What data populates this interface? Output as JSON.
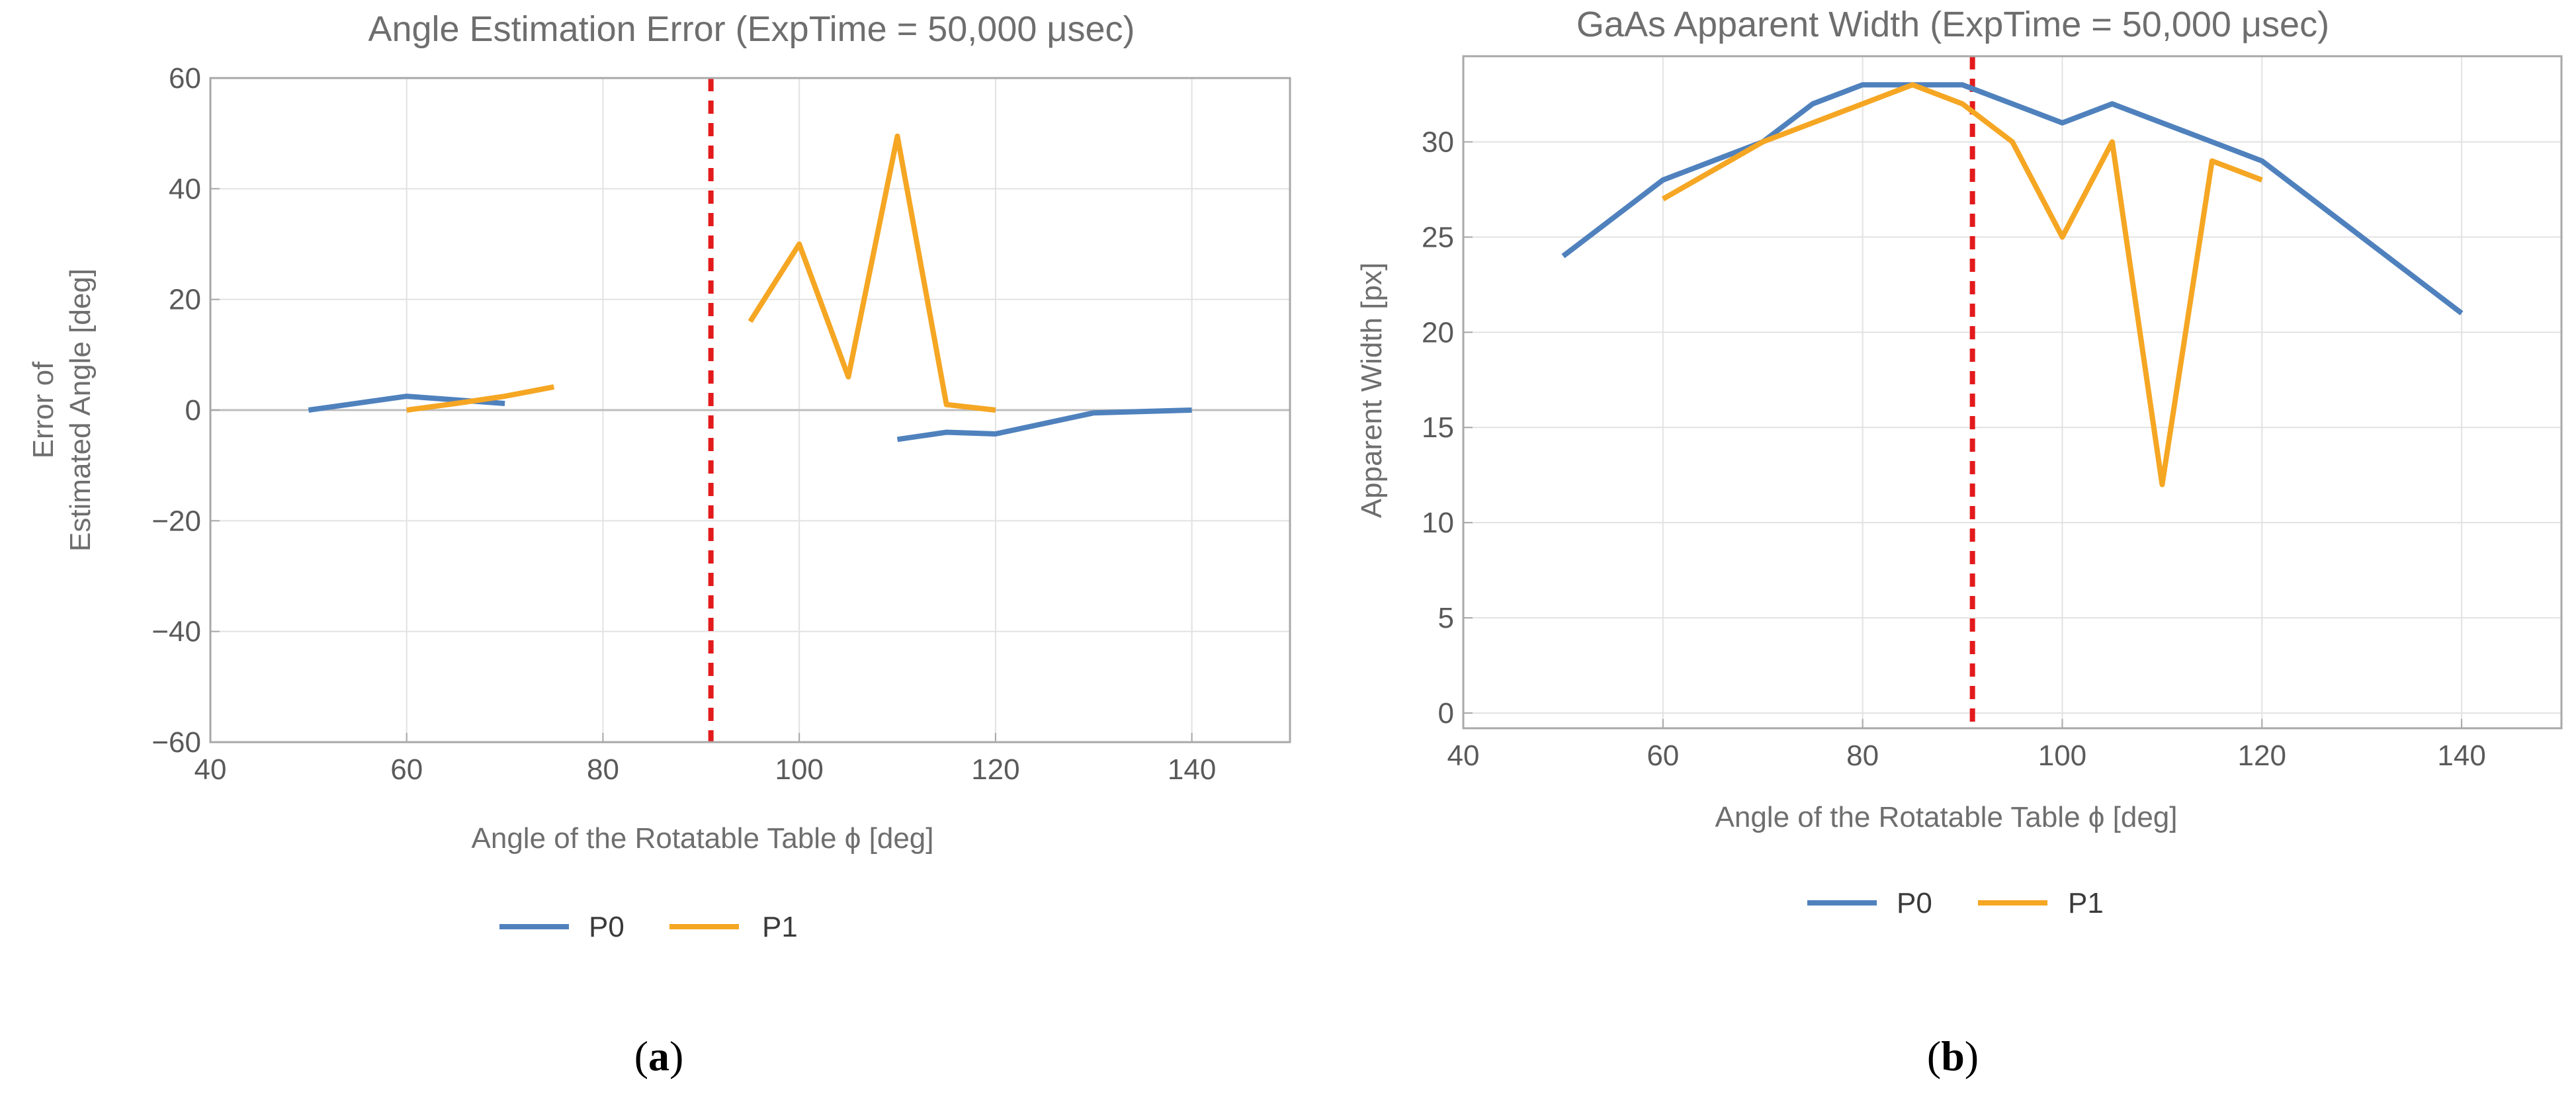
{
  "colors": {
    "P0": "#4f81bd",
    "P1": "#f5a623",
    "reference_line": "#e31a1c",
    "grid": "#e2e2e2",
    "frame": "#a8a8a8",
    "zero_line": "#bdbdbd"
  },
  "chart_data": [
    {
      "type": "line",
      "panel_label": "a",
      "title": "Angle Estimation Error (ExpTime = 50,000 μsec)",
      "xlabel": "Angle of the Rotatable Table ϕ [deg]",
      "ylabel_lines": [
        "Error of",
        "Estimated Angle [deg]"
      ],
      "xlim": [
        40,
        150
      ],
      "ylim": [
        -60,
        60
      ],
      "x_ticks": [
        40,
        60,
        80,
        100,
        120,
        140
      ],
      "y_ticks": [
        -60,
        -40,
        -20,
        0,
        20,
        40,
        60
      ],
      "y_tick_labels": [
        "−60",
        "−40",
        "−20",
        "0",
        "20",
        "40",
        "60"
      ],
      "zero_line": true,
      "reference_x": 91,
      "grid": true,
      "legend": [
        "P0",
        "P1"
      ],
      "legend_position": "bottom-center",
      "series": [
        {
          "name": "P0",
          "segments": [
            {
              "x": [
                50,
                60,
                70
              ],
              "y": [
                0,
                2.5,
                1.2
              ]
            },
            {
              "x": [
                110,
                115,
                120,
                130,
                140
              ],
              "y": [
                -5.3,
                -4,
                -4.3,
                -0.5,
                0
              ]
            }
          ]
        },
        {
          "name": "P1",
          "segments": [
            {
              "x": [
                60,
                65,
                70,
                75
              ],
              "y": [
                0,
                1.2,
                2.5,
                4.2
              ]
            },
            {
              "x": [
                95,
                100,
                105,
                110,
                115,
                120
              ],
              "y": [
                16,
                30,
                6,
                49.5,
                1,
                0
              ]
            }
          ]
        }
      ]
    },
    {
      "type": "line",
      "panel_label": "b",
      "title": "GaAs Apparent Width (ExpTime = 50,000 μsec)",
      "xlabel": "Angle of the Rotatable Table ϕ [deg]",
      "ylabel_lines": [
        "Apparent Width [px]"
      ],
      "xlim": [
        40,
        150
      ],
      "ylim": [
        -0.8,
        34.5
      ],
      "x_ticks": [
        40,
        60,
        80,
        100,
        120,
        140
      ],
      "y_ticks": [
        0,
        5,
        10,
        15,
        20,
        25,
        30
      ],
      "y_tick_labels": [
        "0",
        "5",
        "10",
        "15",
        "20",
        "25",
        "30"
      ],
      "zero_line": false,
      "reference_x": 91,
      "grid": true,
      "legend": [
        "P0",
        "P1"
      ],
      "legend_position": "bottom-center",
      "series": [
        {
          "name": "P0",
          "segments": [
            {
              "x": [
                50,
                60,
                70,
                75,
                80,
                85,
                90,
                100,
                105,
                110,
                120,
                130,
                140
              ],
              "y": [
                24,
                28,
                30,
                32,
                33,
                33,
                33,
                31,
                32,
                31,
                29,
                25,
                21
              ]
            }
          ]
        },
        {
          "name": "P1",
          "segments": [
            {
              "x": [
                60,
                70,
                75,
                80,
                85,
                90,
                95,
                100,
                105,
                110,
                115,
                120
              ],
              "y": [
                27,
                30,
                31,
                32,
                33,
                32,
                30,
                25,
                30,
                12,
                29,
                28
              ]
            }
          ]
        }
      ]
    }
  ]
}
